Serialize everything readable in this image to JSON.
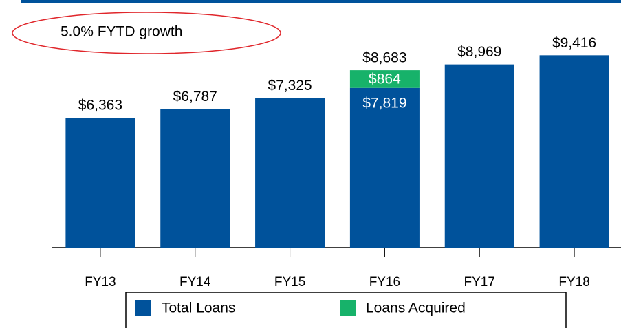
{
  "chart_data": {
    "type": "stacked_bar",
    "annotation": "5.0% FYTD growth",
    "categories": [
      "FY13",
      "FY14",
      "FY15",
      "FY16",
      "FY17",
      "FY18"
    ],
    "series": [
      {
        "name": "Total Loans",
        "color": "#00529b",
        "values": [
          6363,
          6787,
          7325,
          7819,
          8969,
          9416
        ],
        "value_labels": [
          null,
          null,
          null,
          "$7,819",
          null,
          null
        ]
      },
      {
        "name": "Loans Acquired",
        "color": "#17b26a",
        "values": [
          null,
          null,
          null,
          864,
          null,
          null
        ],
        "value_labels": [
          null,
          null,
          null,
          "$864",
          null,
          null
        ]
      }
    ],
    "totals": {
      "values": [
        6363,
        6787,
        7325,
        8683,
        8969,
        9416
      ],
      "value_labels": [
        "$6,363",
        "$6,787",
        "$7,325",
        "$8,683",
        "$8,969",
        "$9,416"
      ]
    },
    "ylim": [
      0,
      10000
    ],
    "legend": "bottom"
  }
}
